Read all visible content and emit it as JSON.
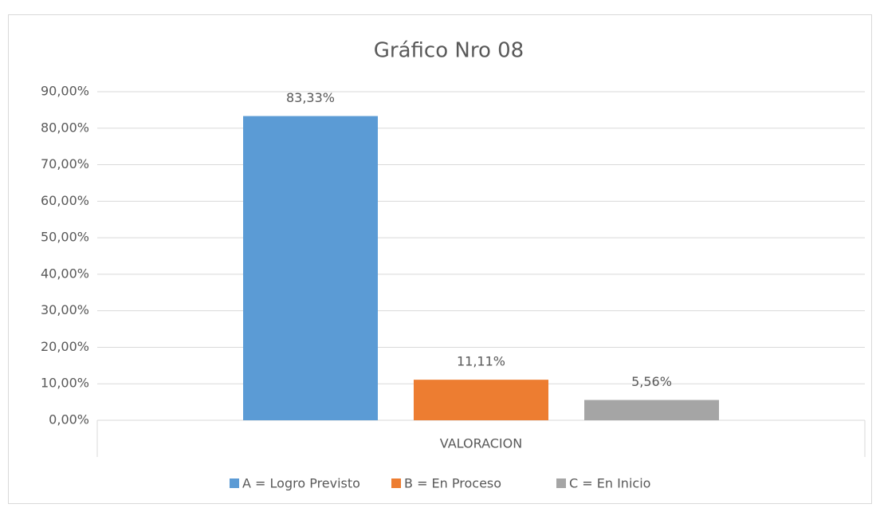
{
  "chart_data": {
    "type": "bar",
    "title": "Gráfico Nro 08",
    "categories": [
      "VALORACION"
    ],
    "series": [
      {
        "name": "A = Logro Previsto",
        "color": "#5b9bd5",
        "values": [
          83.33
        ],
        "value_labels": [
          "83,33%"
        ]
      },
      {
        "name": "B = En Proceso",
        "color": "#ed7d31",
        "values": [
          11.11
        ],
        "value_labels": [
          "11,11%"
        ]
      },
      {
        "name": "C = En Inicio",
        "color": "#a5a5a5",
        "values": [
          5.56
        ],
        "value_labels": [
          "5,56%"
        ]
      }
    ],
    "ylim": [
      0,
      90
    ],
    "yticks": [
      {
        "value": 0,
        "label": "0,00%"
      },
      {
        "value": 10,
        "label": "10,00%"
      },
      {
        "value": 20,
        "label": "20,00%"
      },
      {
        "value": 30,
        "label": "30,00%"
      },
      {
        "value": 40,
        "label": "40,00%"
      },
      {
        "value": 50,
        "label": "50,00%"
      },
      {
        "value": 60,
        "label": "60,00%"
      },
      {
        "value": 70,
        "label": "70,00%"
      },
      {
        "value": 80,
        "label": "80,00%"
      },
      {
        "value": 90,
        "label": "90,00%"
      }
    ],
    "grid": true,
    "legend": "bottom"
  }
}
